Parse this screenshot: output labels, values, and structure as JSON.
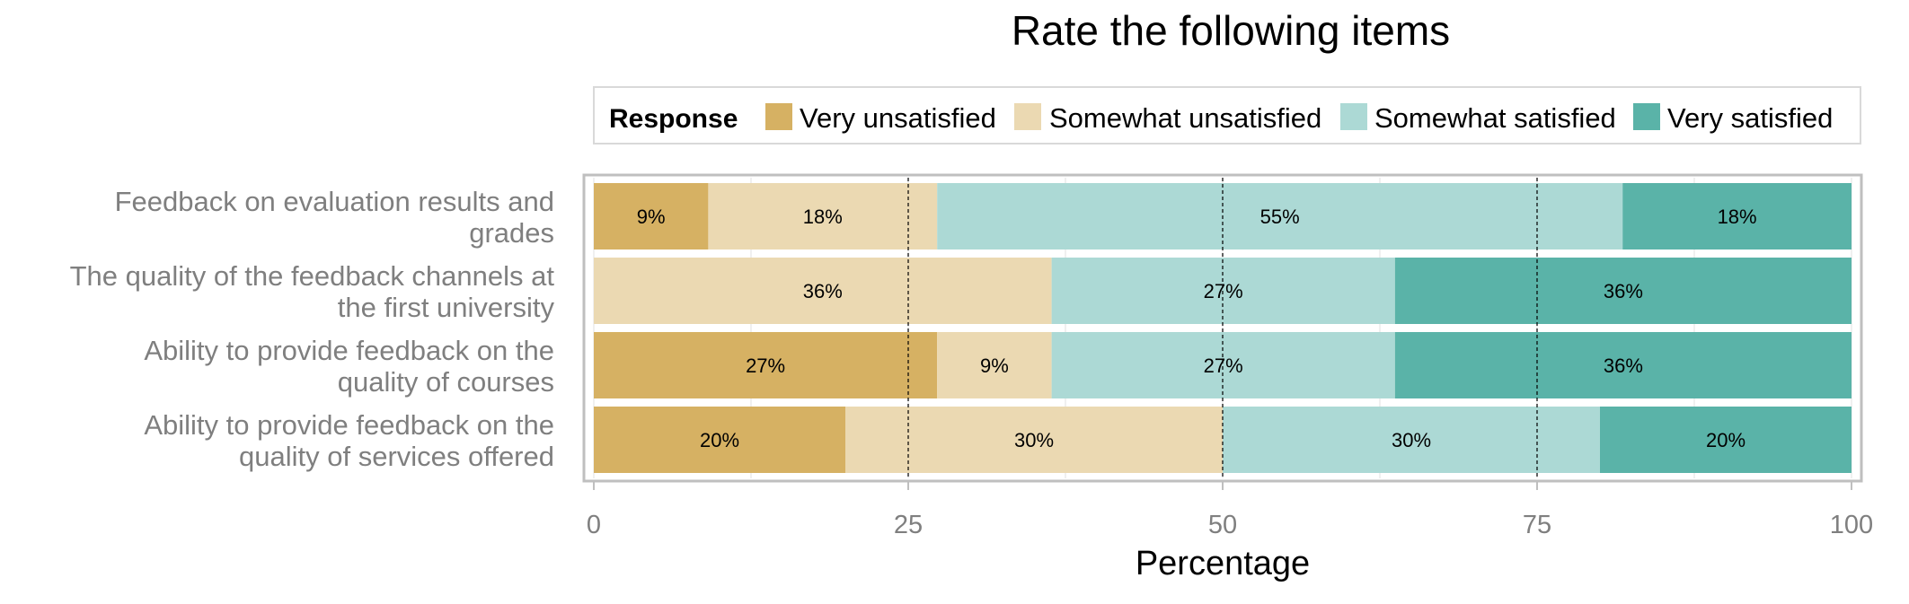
{
  "chart_data": {
    "type": "bar",
    "orientation": "horizontal",
    "stacked": true,
    "title": "Rate the following items",
    "xlabel": "Percentage",
    "ylabel": "",
    "xlim": [
      0,
      100
    ],
    "x_ticks": [
      "0",
      "25",
      "50",
      "75",
      "100"
    ],
    "reference_lines": [
      25,
      50,
      75
    ],
    "grid": true,
    "legend": {
      "title": "Response",
      "placement": "top",
      "entries": [
        "Very unsatisfied",
        "Somewhat unsatisfied",
        "Somewhat satisfied",
        "Very satisfied"
      ]
    },
    "categories": [
      "Feedback on evaluation results and grades",
      "The quality of the feedback channels at the first university",
      "Ability to provide feedback on the quality of courses",
      "Ability to provide feedback on the quality of services offered"
    ],
    "category_label_lines": [
      [
        "Feedback on evaluation results and",
        "grades"
      ],
      [
        "The quality of the feedback channels at",
        "the first university"
      ],
      [
        "Ability to provide feedback on the",
        "quality of courses"
      ],
      [
        "Ability to provide feedback on the",
        "quality of services offered"
      ]
    ],
    "series": [
      {
        "name": "Very unsatisfied",
        "color": "#d6b163",
        "values": [
          9.1,
          0,
          27.3,
          20
        ],
        "labels": [
          "9%",
          "",
          "27%",
          "20%"
        ]
      },
      {
        "name": "Somewhat unsatisfied",
        "color": "#ebd9b2",
        "values": [
          18.2,
          36.4,
          9.1,
          30
        ],
        "labels": [
          "18%",
          "36%",
          "9%",
          "30%"
        ]
      },
      {
        "name": "Somewhat satisfied",
        "color": "#acd9d5",
        "values": [
          54.5,
          27.3,
          27.3,
          30
        ],
        "labels": [
          "55%",
          "27%",
          "27%",
          "30%"
        ]
      },
      {
        "name": "Very satisfied",
        "color": "#5ab3a8",
        "values": [
          18.2,
          36.3,
          36.3,
          20
        ],
        "labels": [
          "18%",
          "36%",
          "36%",
          "20%"
        ]
      }
    ]
  }
}
